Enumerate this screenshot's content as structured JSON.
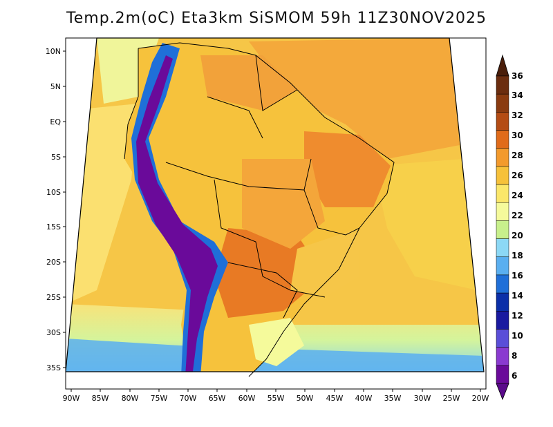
{
  "title": "Temp.2m(oC) Eta3km SiSMOM 59h 11Z30NOV2025",
  "map": {
    "variable": "2m temperature",
    "units": "oC",
    "model": "Eta3km SiSMOM",
    "lat_labels": [
      "10N",
      "5N",
      "EQ",
      "5S",
      "10S",
      "15S",
      "20S",
      "25S",
      "30S",
      "35S"
    ],
    "lon_labels": [
      "90W",
      "85W",
      "80W",
      "75W",
      "70W",
      "65W",
      "60W",
      "55W",
      "50W",
      "45W",
      "40W",
      "35W",
      "30W",
      "25W",
      "20W"
    ]
  },
  "colorbar": {
    "labels": [
      "36",
      "34",
      "32",
      "30",
      "28",
      "26",
      "24",
      "22",
      "20",
      "18",
      "16",
      "14",
      "12",
      "10",
      "8",
      "6"
    ],
    "colors": [
      "#6b2d0f",
      "#8a3b10",
      "#b44c14",
      "#e06b1a",
      "#f39a2c",
      "#f6c13a",
      "#fbe76a",
      "#f5fa9b",
      "#c8f08c",
      "#8cd8f5",
      "#5aaff0",
      "#1f6fd8",
      "#0b2fa8",
      "#1a1aa0",
      "#5a4ed8",
      "#8a3ad0",
      "#6a0a9a"
    ],
    "top_arrow_color": "#4a1e0a",
    "bottom_arrow_color": "#5a0a8a"
  },
  "colors": {
    "ocean": "#f6c244",
    "land_hot": "#f0a040",
    "andes_cold": "#6a1aa0"
  }
}
